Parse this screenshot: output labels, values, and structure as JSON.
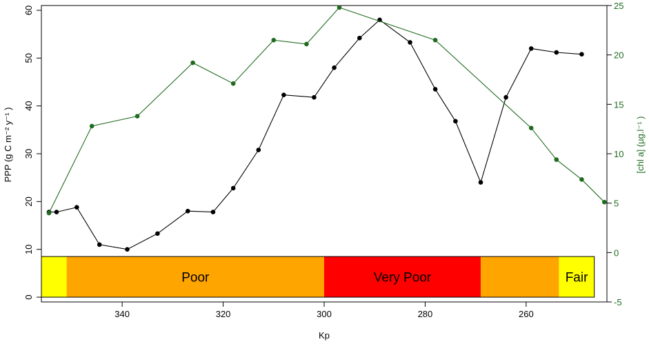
{
  "chart_data": {
    "type": "line",
    "xlabel": "Kp",
    "ylabel_left": "PPP (g C m⁻² y⁻¹ )",
    "ylabel_right": "[chl a]  (µg.l⁻¹ )",
    "x_ticks": [
      340,
      320,
      300,
      280,
      260
    ],
    "y_left_ticks": [
      0,
      10,
      20,
      30,
      40,
      50,
      60
    ],
    "y_right_ticks": [
      -5,
      0,
      5,
      10,
      15,
      20,
      25
    ],
    "xlim": [
      356,
      244
    ],
    "ylim_left": [
      -1,
      61
    ],
    "ylim_right": [
      -5,
      25
    ],
    "series": [
      {
        "axis": "left",
        "color": "#000000",
        "x": [
          354.5,
          353,
          349,
          344.5,
          339,
          333,
          327,
          322,
          318,
          313,
          308,
          302,
          298,
          293,
          289,
          283,
          278,
          274,
          269,
          264,
          259,
          254,
          249
        ],
        "y": [
          17.8,
          17.8,
          18.8,
          11,
          10,
          13.3,
          18,
          17.8,
          22.8,
          30.8,
          42.3,
          41.8,
          48,
          54.2,
          58,
          53.3,
          43.5,
          36.8,
          24,
          41.8,
          52,
          51.2,
          50.8
        ]
      },
      {
        "axis": "right",
        "color": "#1f6b1f",
        "x": [
          354.5,
          346,
          337,
          326,
          318,
          310,
          303.5,
          297,
          278,
          259,
          254,
          249,
          244.5
        ],
        "y": [
          4,
          12.8,
          13.8,
          19.2,
          17.1,
          21.5,
          21.1,
          24.8,
          21.5,
          12.6,
          9.4,
          7.4,
          5.1
        ]
      }
    ],
    "status_band": [
      {
        "label": "",
        "from": 356,
        "to": 351,
        "color": "#ffff00"
      },
      {
        "label": "Poor",
        "from": 351,
        "to": 300,
        "color": "#ffa500"
      },
      {
        "label": "Very Poor",
        "from": 300,
        "to": 269,
        "color": "#ff0000"
      },
      {
        "label": "",
        "from": 269,
        "to": 253.5,
        "color": "#ffa500"
      },
      {
        "label": "Fair",
        "from": 253.5,
        "to": 246.5,
        "color": "#ffff00"
      }
    ]
  }
}
